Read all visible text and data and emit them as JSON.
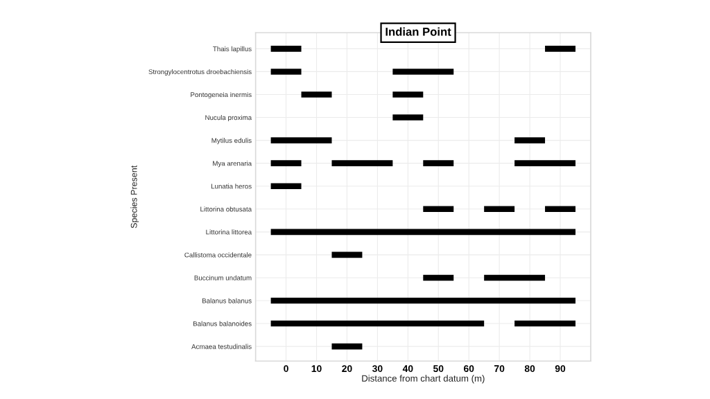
{
  "chart_data": {
    "type": "bar",
    "orientation": "horizontal",
    "title": "Indian Point",
    "xlabel": "Distance from chart datum (m)",
    "ylabel": "Species Present",
    "categories": [
      "Thais lapillus",
      "Strongylocentrotus droebachiensis",
      "Pontogeneia inermis",
      "Nucula proxima",
      "Mytilus edulis",
      "Mya arenaria",
      "Lunatia heros",
      "Littorina obtusata",
      "Littorina littorea",
      "Callistoma occidentale",
      "Buccinum undatum",
      "Balanus balanus",
      "Balanus balanoides",
      "Acmaea testudinalis"
    ],
    "series": [
      {
        "color": "#000000",
        "base": [
          -5,
          -5,
          5,
          35,
          -5,
          -5,
          -5,
          45,
          -5,
          15,
          45,
          -5,
          -5,
          15
        ],
        "values": [
          10,
          10,
          10,
          10,
          20,
          10,
          10,
          10,
          100,
          10,
          10,
          100,
          70,
          10
        ]
      },
      {
        "color": "#000000",
        "base": [
          85,
          35,
          35,
          null,
          75,
          15,
          null,
          65,
          null,
          null,
          65,
          null,
          75,
          null
        ],
        "values": [
          10,
          20,
          10,
          null,
          10,
          20,
          null,
          10,
          null,
          null,
          20,
          null,
          20,
          null
        ]
      },
      {
        "color": "#000000",
        "base": [
          null,
          null,
          null,
          null,
          null,
          45,
          null,
          85,
          null,
          null,
          null,
          null,
          null,
          null
        ],
        "values": [
          null,
          null,
          null,
          null,
          null,
          10,
          null,
          10,
          null,
          null,
          null,
          null,
          null,
          null
        ]
      },
      {
        "color": "#000000",
        "base": [
          null,
          null,
          null,
          null,
          null,
          75,
          null,
          null,
          null,
          null,
          null,
          null,
          null,
          null
        ],
        "values": [
          null,
          null,
          null,
          null,
          null,
          20,
          null,
          null,
          null,
          null,
          null,
          null,
          null,
          null
        ]
      }
    ],
    "xlim": [
      -10,
      100
    ],
    "xticks": [
      0,
      10,
      20,
      30,
      40,
      50,
      60,
      70,
      80,
      90
    ],
    "grid": true
  }
}
